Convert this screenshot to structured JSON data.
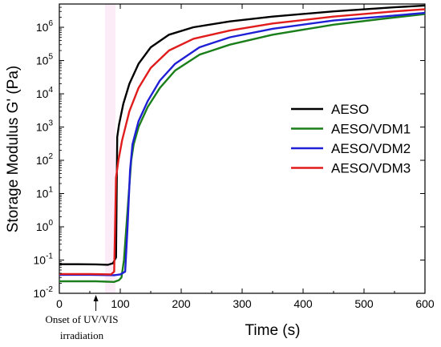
{
  "chart_data": {
    "type": "line",
    "xlabel": "Time (s)",
    "ylabel": "Storage Modulus G' (Pa)",
    "xlim": [
      0,
      600
    ],
    "ylim_log10": [
      -2,
      6.7
    ],
    "y_scale": "log",
    "x_ticks": [
      0,
      100,
      200,
      300,
      400,
      500,
      600
    ],
    "y_tick_exponents": [
      -2,
      -1,
      0,
      1,
      2,
      3,
      4,
      5,
      6
    ],
    "legend_position": "right",
    "annotation": {
      "lines": [
        "Onset of UV/VIS",
        "irradiation"
      ],
      "x": 60
    },
    "series": [
      {
        "name": "AESO",
        "color": "#000000",
        "points": [
          [
            0,
            0.075
          ],
          [
            30,
            0.075
          ],
          [
            60,
            0.074
          ],
          [
            80,
            0.072
          ],
          [
            88,
            0.08
          ],
          [
            93,
            0.12
          ],
          [
            95,
            500
          ],
          [
            98,
            1200
          ],
          [
            105,
            5000
          ],
          [
            115,
            20000
          ],
          [
            130,
            80000
          ],
          [
            150,
            250000
          ],
          [
            180,
            600000
          ],
          [
            220,
            1000000
          ],
          [
            280,
            1500000
          ],
          [
            350,
            2100000
          ],
          [
            450,
            3000000
          ],
          [
            550,
            4000000
          ],
          [
            600,
            4500000
          ]
        ]
      },
      {
        "name": "AESO/VDM1",
        "color": "#1a7f1a",
        "points": [
          [
            0,
            0.023
          ],
          [
            30,
            0.023
          ],
          [
            60,
            0.023
          ],
          [
            90,
            0.022
          ],
          [
            98,
            0.025
          ],
          [
            102,
            0.03
          ],
          [
            106,
            0.1
          ],
          [
            110,
            1
          ],
          [
            114,
            10
          ],
          [
            118,
            100
          ],
          [
            122,
            300
          ],
          [
            130,
            1000
          ],
          [
            145,
            4000
          ],
          [
            165,
            15000
          ],
          [
            190,
            50000
          ],
          [
            230,
            150000
          ],
          [
            280,
            300000
          ],
          [
            350,
            600000
          ],
          [
            450,
            1200000
          ],
          [
            530,
            1800000
          ],
          [
            600,
            2500000
          ]
        ]
      },
      {
        "name": "AESO/VDM2",
        "color": "#1f1fd6",
        "points": [
          [
            0,
            0.036
          ],
          [
            50,
            0.036
          ],
          [
            90,
            0.035
          ],
          [
            100,
            0.037
          ],
          [
            108,
            0.045
          ],
          [
            112,
            1
          ],
          [
            116,
            50
          ],
          [
            120,
            300
          ],
          [
            130,
            1500
          ],
          [
            145,
            6000
          ],
          [
            165,
            25000
          ],
          [
            190,
            80000
          ],
          [
            230,
            250000
          ],
          [
            280,
            500000
          ],
          [
            350,
            900000
          ],
          [
            450,
            1600000
          ],
          [
            530,
            2100000
          ],
          [
            600,
            2700000
          ]
        ]
      },
      {
        "name": "AESO/VDM3",
        "color": "#e01c1c",
        "points": [
          [
            0,
            0.038
          ],
          [
            50,
            0.038
          ],
          [
            85,
            0.037
          ],
          [
            90,
            0.045
          ],
          [
            93,
            30
          ],
          [
            97,
            100
          ],
          [
            103,
            400
          ],
          [
            115,
            3000
          ],
          [
            130,
            15000
          ],
          [
            150,
            60000
          ],
          [
            180,
            200000
          ],
          [
            220,
            450000
          ],
          [
            280,
            800000
          ],
          [
            350,
            1300000
          ],
          [
            450,
            2100000
          ],
          [
            550,
            3000000
          ],
          [
            600,
            3500000
          ]
        ]
      }
    ]
  }
}
